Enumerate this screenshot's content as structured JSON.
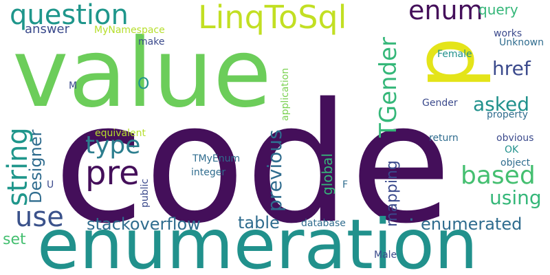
{
  "palette": {
    "dark_purple": "#440f5a",
    "indigo": "#3b4a8c",
    "steel_blue": "#2f6c8e",
    "teal": "#1f968b",
    "green": "#44b57a",
    "lime": "#7ad151",
    "yellow_green": "#b5de2b",
    "yellow": "#e0e31a"
  },
  "words": [
    "code",
    "enumeration",
    "value",
    "p",
    "LinqToSql",
    "question",
    "enum",
    "query",
    "answer",
    "MyNamespace",
    "make",
    "works",
    "Unknown",
    "Female",
    "href",
    "TGender",
    "O",
    "M",
    "asked",
    "Gender",
    "string",
    "type",
    "pre",
    "Designer",
    "previous",
    "application",
    "property",
    "obvious",
    "equivalent",
    "return",
    "OK",
    "object",
    "based",
    "global",
    "TMyEnum",
    "integer",
    "U",
    "public",
    "F",
    "mapping",
    "using",
    "use",
    "stackoverflow",
    "table",
    "enumerated",
    "database",
    "set",
    "Male"
  ]
}
